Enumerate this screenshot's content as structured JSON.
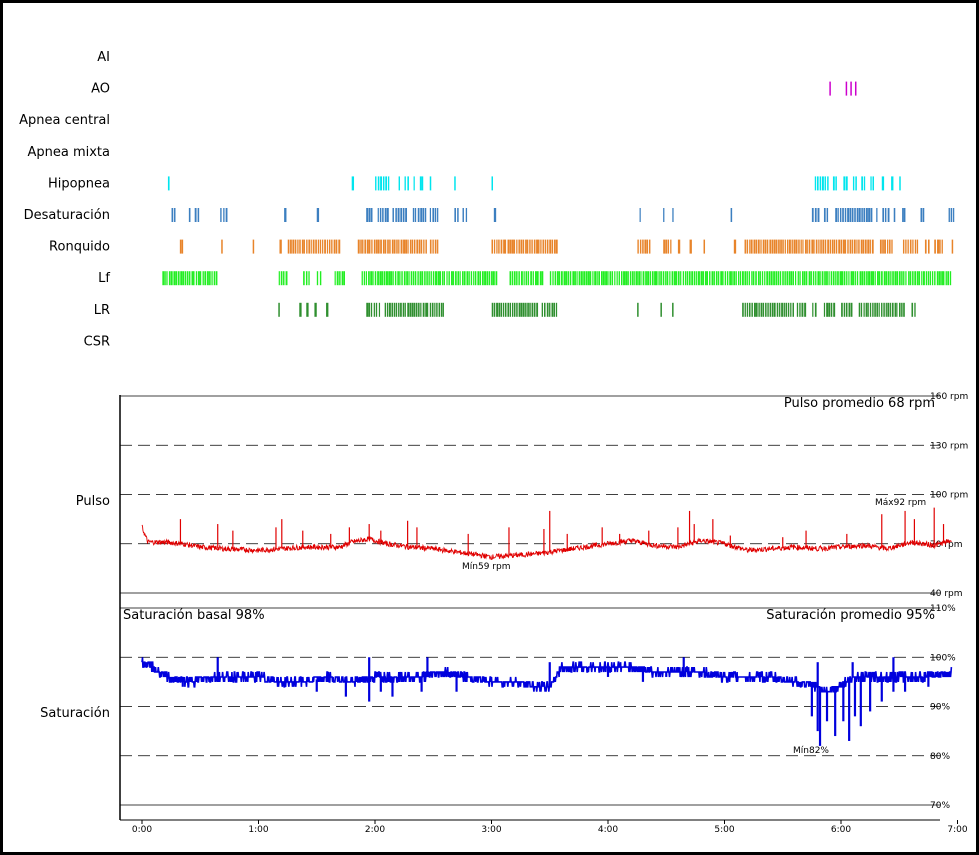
{
  "chart_data": {
    "type": "line",
    "x_axis": {
      "range_hours": [
        0,
        7
      ],
      "tick_labels": [
        "0:00",
        "1:00",
        "2:00",
        "3:00",
        "4:00",
        "5:00",
        "6:00",
        "7:00"
      ]
    },
    "event_rows": [
      {
        "label": "AI",
        "color": "",
        "segments": []
      },
      {
        "label": "AO",
        "color": "#cc00cc",
        "segments": [
          [
            5.9,
            5.91
          ],
          [
            6.04,
            6.05
          ],
          [
            6.08,
            6.09
          ],
          [
            6.12,
            6.13
          ]
        ]
      },
      {
        "label": "Apnea central",
        "color": "",
        "segments": []
      },
      {
        "label": "Apnea mixta",
        "color": "",
        "segments": []
      },
      {
        "label": "Hipopnea",
        "color": "#00e5ee",
        "segments": [
          [
            0.22,
            0.25
          ],
          [
            1.8,
            1.82
          ],
          [
            2.0,
            2.13
          ],
          [
            2.2,
            2.23
          ],
          [
            2.25,
            2.3
          ],
          [
            2.33,
            2.36
          ],
          [
            2.38,
            2.42
          ],
          [
            2.47,
            2.48
          ],
          [
            2.68,
            2.69
          ],
          [
            3.0,
            3.01
          ],
          [
            5.77,
            5.9
          ],
          [
            5.93,
            5.97
          ],
          [
            6.02,
            6.06
          ],
          [
            6.1,
            6.14
          ],
          [
            6.17,
            6.22
          ],
          [
            6.25,
            6.29
          ],
          [
            6.35,
            6.37
          ],
          [
            6.43,
            6.45
          ],
          [
            6.5,
            6.51
          ]
        ]
      },
      {
        "label": "Desaturación",
        "color": "#3c7fc0",
        "segments": [
          [
            0.25,
            0.29
          ],
          [
            0.4,
            0.43
          ],
          [
            0.45,
            0.5
          ],
          [
            0.67,
            0.74
          ],
          [
            1.22,
            1.24
          ],
          [
            1.5,
            1.52
          ],
          [
            1.92,
            1.98
          ],
          [
            2.02,
            2.12
          ],
          [
            2.15,
            2.28
          ],
          [
            2.32,
            2.45
          ],
          [
            2.47,
            2.55
          ],
          [
            2.68,
            2.73
          ],
          [
            2.75,
            2.8
          ],
          [
            3.02,
            3.04
          ],
          [
            4.27,
            4.3
          ],
          [
            4.47,
            4.5
          ],
          [
            4.55,
            4.58
          ],
          [
            5.05,
            5.08
          ],
          [
            5.75,
            5.82
          ],
          [
            5.85,
            5.9
          ],
          [
            5.95,
            6.27
          ],
          [
            6.3,
            6.33
          ],
          [
            6.35,
            6.42
          ],
          [
            6.45,
            6.48
          ],
          [
            6.52,
            6.56
          ],
          [
            6.68,
            6.72
          ],
          [
            6.92,
            6.98
          ]
        ]
      },
      {
        "label": "Ronquido",
        "color": "#e8842a",
        "segments": [
          [
            0.32,
            0.36
          ],
          [
            0.68,
            0.69
          ],
          [
            0.95,
            0.96
          ],
          [
            1.18,
            1.2
          ],
          [
            1.25,
            1.7
          ],
          [
            1.85,
            2.45
          ],
          [
            2.47,
            2.55
          ],
          [
            3.0,
            3.57
          ],
          [
            4.25,
            4.37
          ],
          [
            4.47,
            4.55
          ],
          [
            4.6,
            4.62
          ],
          [
            4.7,
            4.72
          ],
          [
            4.82,
            4.83
          ],
          [
            5.08,
            5.1
          ],
          [
            5.17,
            6.28
          ],
          [
            6.33,
            6.45
          ],
          [
            6.53,
            6.67
          ],
          [
            6.72,
            6.77
          ],
          [
            6.8,
            6.88
          ],
          [
            6.95,
            6.96
          ]
        ]
      },
      {
        "label": "Lf",
        "color": "#22ee22",
        "segments": [
          [
            0.17,
            0.65
          ],
          [
            1.17,
            1.25
          ],
          [
            1.38,
            1.45
          ],
          [
            1.5,
            1.55
          ],
          [
            1.65,
            1.75
          ],
          [
            1.88,
            3.05
          ],
          [
            3.15,
            3.45
          ],
          [
            3.5,
            6.95
          ]
        ]
      },
      {
        "label": "LR",
        "color": "#2f8f2f",
        "segments": [
          [
            1.17,
            1.18
          ],
          [
            1.35,
            1.37
          ],
          [
            1.41,
            1.43
          ],
          [
            1.48,
            1.5
          ],
          [
            1.58,
            1.6
          ],
          [
            1.92,
            2.05
          ],
          [
            2.08,
            2.6
          ],
          [
            3.0,
            3.4
          ],
          [
            3.43,
            3.57
          ],
          [
            4.25,
            4.26
          ],
          [
            4.45,
            4.46
          ],
          [
            4.55,
            4.56
          ],
          [
            5.15,
            5.6
          ],
          [
            5.62,
            5.7
          ],
          [
            5.75,
            5.8
          ],
          [
            5.85,
            5.95
          ],
          [
            6.0,
            6.1
          ],
          [
            6.15,
            6.55
          ],
          [
            6.6,
            6.65
          ]
        ]
      },
      {
        "label": "CSR",
        "color": "",
        "segments": []
      }
    ],
    "pulse": {
      "row_label": "Pulso",
      "unit": "rpm",
      "ylim": [
        40,
        160
      ],
      "solid_ticks": [
        160,
        40
      ],
      "dashed_ticks": [
        130,
        100,
        70
      ],
      "tick_labels": [
        "160 rpm",
        "130 rpm",
        "100 rpm",
        "70 rpm",
        "40 rpm"
      ],
      "average_text": "Pulso promedio 68 rpm",
      "min_text": "Mín59 rpm",
      "max_text": "Máx92 rpm",
      "color": "#e00000",
      "series": [
        [
          0,
          80
        ],
        [
          0.05,
          71
        ],
        [
          0.2,
          71
        ],
        [
          0.35,
          70
        ],
        [
          0.5,
          68
        ],
        [
          0.7,
          67
        ],
        [
          1.0,
          66
        ],
        [
          1.2,
          67
        ],
        [
          1.4,
          68
        ],
        [
          1.6,
          68
        ],
        [
          1.7,
          68
        ],
        [
          1.8,
          71
        ],
        [
          1.95,
          73
        ],
        [
          2.1,
          70
        ],
        [
          2.3,
          68
        ],
        [
          2.5,
          67
        ],
        [
          2.7,
          65
        ],
        [
          2.9,
          63
        ],
        [
          3.0,
          62
        ],
        [
          3.2,
          63
        ],
        [
          3.4,
          64
        ],
        [
          3.6,
          66
        ],
        [
          3.8,
          68
        ],
        [
          4.0,
          70
        ],
        [
          4.2,
          72
        ],
        [
          4.4,
          69
        ],
        [
          4.6,
          68
        ],
        [
          4.8,
          72
        ],
        [
          5.0,
          70
        ],
        [
          5.2,
          66
        ],
        [
          5.4,
          67
        ],
        [
          5.6,
          68
        ],
        [
          5.8,
          67
        ],
        [
          6.0,
          68
        ],
        [
          6.2,
          69
        ],
        [
          6.4,
          67
        ],
        [
          6.6,
          71
        ],
        [
          6.8,
          69
        ],
        [
          6.95,
          72
        ]
      ],
      "spikes": [
        [
          0.33,
          85
        ],
        [
          0.65,
          82
        ],
        [
          0.78,
          78
        ],
        [
          1.15,
          80
        ],
        [
          1.2,
          85
        ],
        [
          1.38,
          78
        ],
        [
          1.62,
          76
        ],
        [
          1.78,
          80
        ],
        [
          1.95,
          82
        ],
        [
          2.05,
          78
        ],
        [
          2.28,
          84
        ],
        [
          2.36,
          80
        ],
        [
          2.8,
          76
        ],
        [
          3.15,
          80
        ],
        [
          3.45,
          79
        ],
        [
          3.5,
          90
        ],
        [
          3.65,
          76
        ],
        [
          3.95,
          80
        ],
        [
          4.1,
          76
        ],
        [
          4.35,
          78
        ],
        [
          4.6,
          80
        ],
        [
          4.7,
          90
        ],
        [
          4.74,
          82
        ],
        [
          4.9,
          85
        ],
        [
          5.05,
          75
        ],
        [
          5.5,
          74
        ],
        [
          5.7,
          78
        ],
        [
          6.05,
          76
        ],
        [
          6.35,
          88
        ],
        [
          6.55,
          90
        ],
        [
          6.63,
          85
        ],
        [
          6.8,
          92
        ],
        [
          6.88,
          82
        ]
      ]
    },
    "saturation": {
      "row_label": "Saturación",
      "unit": "%",
      "ylim": [
        70,
        110
      ],
      "solid_ticks": [
        110,
        70
      ],
      "dashed_ticks": [
        100,
        90,
        80
      ],
      "tick_labels": [
        "110%",
        "100%",
        "90%",
        "80%",
        "70%"
      ],
      "basal_text": "Saturación basal 98%",
      "average_text": "Saturación promedio 95%",
      "min_text": "Mín82%",
      "color": "#0000dd",
      "series": [
        [
          0,
          99
        ],
        [
          0.1,
          98
        ],
        [
          0.2,
          96
        ],
        [
          0.4,
          95
        ],
        [
          0.6,
          96
        ],
        [
          0.8,
          96
        ],
        [
          1.0,
          96
        ],
        [
          1.2,
          95
        ],
        [
          1.4,
          95
        ],
        [
          1.6,
          96
        ],
        [
          1.8,
          95
        ],
        [
          2.0,
          96
        ],
        [
          2.2,
          96
        ],
        [
          2.4,
          96
        ],
        [
          2.6,
          97
        ],
        [
          2.8,
          96
        ],
        [
          3.0,
          95
        ],
        [
          3.2,
          95
        ],
        [
          3.4,
          94
        ],
        [
          3.5,
          94
        ],
        [
          3.6,
          98
        ],
        [
          3.8,
          98
        ],
        [
          4.0,
          98
        ],
        [
          4.2,
          98
        ],
        [
          4.4,
          97
        ],
        [
          4.6,
          97
        ],
        [
          4.8,
          97
        ],
        [
          5.0,
          96
        ],
        [
          5.2,
          96
        ],
        [
          5.4,
          96
        ],
        [
          5.6,
          95
        ],
        [
          5.8,
          94
        ],
        [
          5.9,
          93
        ],
        [
          6.1,
          96
        ],
        [
          6.3,
          96
        ],
        [
          6.5,
          96
        ],
        [
          6.7,
          96
        ],
        [
          6.95,
          97
        ]
      ],
      "dips": [
        [
          0.35,
          94
        ],
        [
          0.72,
          96
        ],
        [
          1.23,
          94
        ],
        [
          1.5,
          93
        ],
        [
          1.75,
          92
        ],
        [
          1.95,
          91
        ],
        [
          2.05,
          93
        ],
        [
          2.15,
          92
        ],
        [
          2.4,
          93
        ],
        [
          2.7,
          93
        ],
        [
          3.45,
          94
        ],
        [
          4.0,
          96
        ],
        [
          4.3,
          95
        ],
        [
          4.5,
          96
        ],
        [
          4.7,
          96
        ],
        [
          5.2,
          95
        ],
        [
          5.5,
          95
        ],
        [
          5.75,
          88
        ],
        [
          5.8,
          85
        ],
        [
          5.82,
          82
        ],
        [
          5.88,
          87
        ],
        [
          5.95,
          84
        ],
        [
          6.02,
          87
        ],
        [
          6.07,
          83
        ],
        [
          6.12,
          88
        ],
        [
          6.17,
          86
        ],
        [
          6.25,
          89
        ],
        [
          6.35,
          91
        ],
        [
          6.45,
          93
        ],
        [
          6.55,
          93
        ],
        [
          6.75,
          94
        ]
      ],
      "peaks": [
        [
          0.65,
          100
        ],
        [
          1.95,
          100
        ],
        [
          2.45,
          100
        ],
        [
          3.5,
          99
        ],
        [
          4.65,
          100
        ],
        [
          5.8,
          99
        ],
        [
          6.1,
          99
        ],
        [
          6.45,
          100
        ]
      ]
    }
  }
}
